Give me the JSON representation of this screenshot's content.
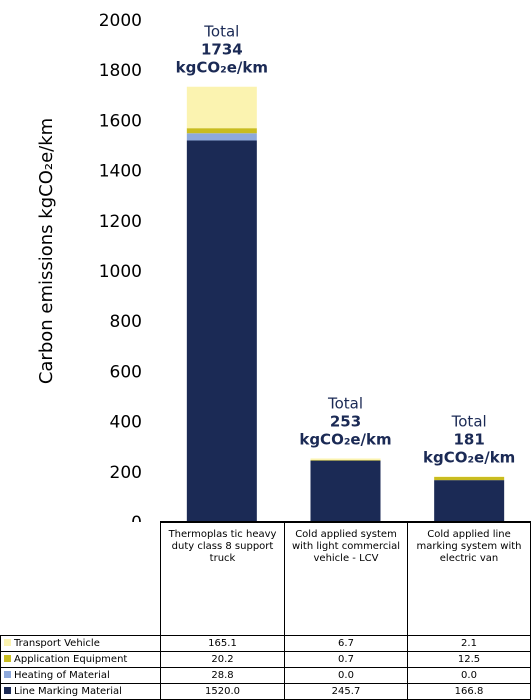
{
  "chart_data": {
    "type": "bar",
    "stacked": true,
    "title": "",
    "ylabel": "Carbon emissions kgCO₂e/km",
    "xlabel": "",
    "ylim": [
      0,
      2000
    ],
    "yticks": [
      "0",
      "200",
      "400",
      "600",
      "800",
      "1000",
      "1200",
      "1400",
      "1600",
      "1800",
      "2000"
    ],
    "grid": false,
    "legend": "table-bottom-left",
    "categories": [
      "Thermoplas tic heavy duty class 8 support truck",
      "Cold applied system with light commercial vehicle - LCV",
      "Cold applied line marking system with electric van"
    ],
    "series": [
      {
        "name": "Transport Vehicle",
        "color": "#FBF3B0",
        "values": [
          165.1,
          6.7,
          2.1
        ],
        "labels": [
          "165.1",
          "6.7",
          "2.1"
        ]
      },
      {
        "name": "Application Equipment",
        "color": "#C9BC1F",
        "values": [
          20.2,
          0.7,
          12.5
        ],
        "labels": [
          "20.2",
          "0.7",
          "12.5"
        ]
      },
      {
        "name": "Heating of Material",
        "color": "#8EA9DB",
        "values": [
          28.8,
          0.0,
          0.0
        ],
        "labels": [
          "28.8",
          "0.0",
          "0.0"
        ]
      },
      {
        "name": "Line Marking Material",
        "color": "#1B2A55",
        "values": [
          1520.0,
          245.7,
          166.8
        ],
        "labels": [
          "1520.0",
          "245.7",
          "166.8"
        ]
      }
    ],
    "totals": [
      {
        "word": "Total",
        "value": "1734",
        "unit": "kgCO₂e/km"
      },
      {
        "word": "Total",
        "value": "253",
        "unit": "kgCO₂e/km"
      },
      {
        "word": "Total",
        "value": "181",
        "unit": "kgCO₂e/km"
      }
    ],
    "colors": {
      "axis": "#000000",
      "total_word": "#1B2A55",
      "total_value": "#1B2A55"
    }
  }
}
